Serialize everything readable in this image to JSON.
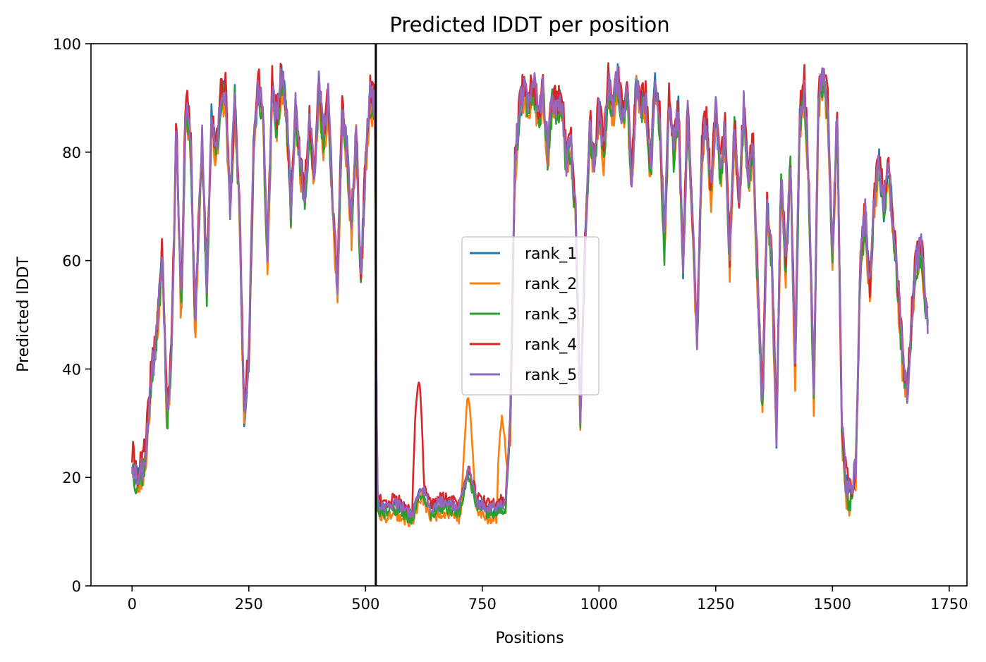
{
  "chart_data": {
    "type": "line",
    "title": "Predicted lDDT per position",
    "xlabel": "Positions",
    "ylabel": "Predicted lDDT",
    "xlim": [
      -88,
      1788
    ],
    "ylim": [
      0,
      100
    ],
    "xticks": [
      0,
      250,
      500,
      750,
      1000,
      1250,
      1500,
      1750
    ],
    "yticks": [
      0,
      20,
      40,
      60,
      80,
      100
    ],
    "grid": false,
    "legend_position": "center",
    "vline_x": 522,
    "series": [
      {
        "name": "rank_1",
        "color": "#1f77b4",
        "offset": 0.0,
        "seed": 11
      },
      {
        "name": "rank_2",
        "color": "#ff7f0e",
        "offset": -1.5,
        "seed": 23
      },
      {
        "name": "rank_3",
        "color": "#2ca02c",
        "offset": -0.8,
        "seed": 37
      },
      {
        "name": "rank_4",
        "color": "#d62728",
        "offset": 1.2,
        "seed": 41
      },
      {
        "name": "rank_5",
        "color": "#9467bd",
        "offset": 0.4,
        "seed": 53
      }
    ],
    "profile": [
      [
        0,
        23
      ],
      [
        10,
        20
      ],
      [
        20,
        21
      ],
      [
        30,
        25
      ],
      [
        40,
        38
      ],
      [
        50,
        44
      ],
      [
        60,
        55
      ],
      [
        65,
        62
      ],
      [
        75,
        30
      ],
      [
        85,
        45
      ],
      [
        95,
        86
      ],
      [
        105,
        50
      ],
      [
        115,
        89
      ],
      [
        125,
        84
      ],
      [
        135,
        48
      ],
      [
        150,
        82
      ],
      [
        160,
        55
      ],
      [
        170,
        86
      ],
      [
        180,
        80
      ],
      [
        190,
        90
      ],
      [
        200,
        91
      ],
      [
        210,
        70
      ],
      [
        220,
        90
      ],
      [
        230,
        68
      ],
      [
        240,
        32
      ],
      [
        250,
        42
      ],
      [
        260,
        80
      ],
      [
        270,
        92
      ],
      [
        280,
        88
      ],
      [
        290,
        60
      ],
      [
        300,
        92
      ],
      [
        310,
        85
      ],
      [
        320,
        94
      ],
      [
        330,
        88
      ],
      [
        340,
        70
      ],
      [
        350,
        88
      ],
      [
        360,
        78
      ],
      [
        370,
        72
      ],
      [
        380,
        85
      ],
      [
        390,
        75
      ],
      [
        400,
        92
      ],
      [
        410,
        82
      ],
      [
        420,
        90
      ],
      [
        430,
        70
      ],
      [
        440,
        55
      ],
      [
        450,
        88
      ],
      [
        460,
        80
      ],
      [
        470,
        66
      ],
      [
        480,
        84
      ],
      [
        490,
        56
      ],
      [
        500,
        78
      ],
      [
        510,
        90
      ],
      [
        520,
        88
      ],
      [
        525,
        15
      ],
      [
        540,
        14
      ],
      [
        560,
        15
      ],
      [
        580,
        14
      ],
      [
        600,
        13
      ],
      [
        620,
        18
      ],
      [
        640,
        14
      ],
      [
        660,
        15
      ],
      [
        680,
        15
      ],
      [
        700,
        14
      ],
      [
        720,
        21
      ],
      [
        740,
        15
      ],
      [
        760,
        14
      ],
      [
        780,
        14
      ],
      [
        800,
        15
      ],
      [
        810,
        30
      ],
      [
        820,
        78
      ],
      [
        830,
        88
      ],
      [
        840,
        92
      ],
      [
        850,
        88
      ],
      [
        860,
        93
      ],
      [
        870,
        86
      ],
      [
        880,
        91
      ],
      [
        890,
        80
      ],
      [
        900,
        90
      ],
      [
        910,
        88
      ],
      [
        920,
        90
      ],
      [
        930,
        78
      ],
      [
        940,
        82
      ],
      [
        950,
        68
      ],
      [
        960,
        30
      ],
      [
        970,
        62
      ],
      [
        980,
        85
      ],
      [
        990,
        78
      ],
      [
        1000,
        88
      ],
      [
        1010,
        80
      ],
      [
        1020,
        93
      ],
      [
        1030,
        88
      ],
      [
        1040,
        94
      ],
      [
        1050,
        86
      ],
      [
        1060,
        92
      ],
      [
        1070,
        75
      ],
      [
        1080,
        93
      ],
      [
        1090,
        88
      ],
      [
        1100,
        90
      ],
      [
        1110,
        76
      ],
      [
        1120,
        93
      ],
      [
        1130,
        86
      ],
      [
        1140,
        62
      ],
      [
        1150,
        90
      ],
      [
        1160,
        80
      ],
      [
        1170,
        88
      ],
      [
        1180,
        58
      ],
      [
        1190,
        88
      ],
      [
        1200,
        68
      ],
      [
        1210,
        45
      ],
      [
        1220,
        80
      ],
      [
        1230,
        86
      ],
      [
        1240,
        72
      ],
      [
        1250,
        88
      ],
      [
        1260,
        76
      ],
      [
        1270,
        84
      ],
      [
        1280,
        60
      ],
      [
        1290,
        85
      ],
      [
        1300,
        70
      ],
      [
        1310,
        88
      ],
      [
        1320,
        75
      ],
      [
        1330,
        82
      ],
      [
        1340,
        55
      ],
      [
        1350,
        32
      ],
      [
        1360,
        70
      ],
      [
        1370,
        60
      ],
      [
        1380,
        28
      ],
      [
        1390,
        75
      ],
      [
        1400,
        58
      ],
      [
        1410,
        78
      ],
      [
        1420,
        40
      ],
      [
        1430,
        86
      ],
      [
        1440,
        92
      ],
      [
        1450,
        72
      ],
      [
        1460,
        35
      ],
      [
        1470,
        90
      ],
      [
        1480,
        94
      ],
      [
        1490,
        88
      ],
      [
        1500,
        60
      ],
      [
        1510,
        88
      ],
      [
        1520,
        30
      ],
      [
        1530,
        18
      ],
      [
        1540,
        17
      ],
      [
        1550,
        22
      ],
      [
        1560,
        60
      ],
      [
        1570,
        68
      ],
      [
        1580,
        55
      ],
      [
        1590,
        72
      ],
      [
        1600,
        78
      ],
      [
        1610,
        70
      ],
      [
        1620,
        78
      ],
      [
        1630,
        66
      ],
      [
        1640,
        55
      ],
      [
        1650,
        42
      ],
      [
        1660,
        35
      ],
      [
        1670,
        50
      ],
      [
        1680,
        60
      ],
      [
        1690,
        62
      ],
      [
        1700,
        52
      ],
      [
        1705,
        47
      ]
    ]
  }
}
